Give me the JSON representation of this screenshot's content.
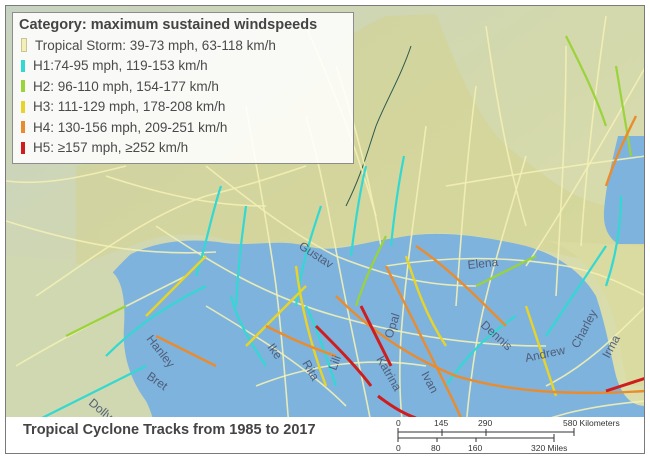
{
  "legend": {
    "title": "Category: maximum sustained windspeeds",
    "items": [
      {
        "label": "Tropical Storm: 39-73 mph, 63-118 km/h",
        "color": "#f3efb5"
      },
      {
        "label": "H1:74-95 mph, 119-153 km/h",
        "color": "#33d8d2"
      },
      {
        "label": "H2: 96-110 mph, 154-177 km/h",
        "color": "#9ad33a"
      },
      {
        "label": "H3: 111-129 mph, 178-208 km/h",
        "color": "#e8d329"
      },
      {
        "label": "H4: 130-156 mph, 209-251 km/h",
        "color": "#ea8c2e"
      },
      {
        "label": "H5: ≥157 mph, ≥252 km/h",
        "color": "#cf1d1d"
      }
    ]
  },
  "map_title": "Tropical Cyclone Tracks from 1985 to 2017",
  "scale": {
    "km_ticks": [
      "0",
      "145",
      "290",
      "580 Kilometers"
    ],
    "mile_ticks": [
      "0",
      "80",
      "160",
      "320 Miles"
    ]
  },
  "storm_labels": [
    "Gustav",
    "Elena",
    "Opal",
    "Dennis",
    "Andrew",
    "Charley",
    "Irma",
    "Katrina",
    "Ivan",
    "Lili",
    "Rita",
    "Ike",
    "Bret",
    "Hanley",
    "Dolly"
  ],
  "colors": {
    "land": "#dde0a6",
    "water": "#7eb3de",
    "ts_track": "#f3efb5",
    "h1_track": "#33d8d2",
    "h2_track": "#9ad33a",
    "h3_track": "#e8d329",
    "h4_track": "#ea8c2e",
    "h5_track": "#cf1d1d"
  }
}
